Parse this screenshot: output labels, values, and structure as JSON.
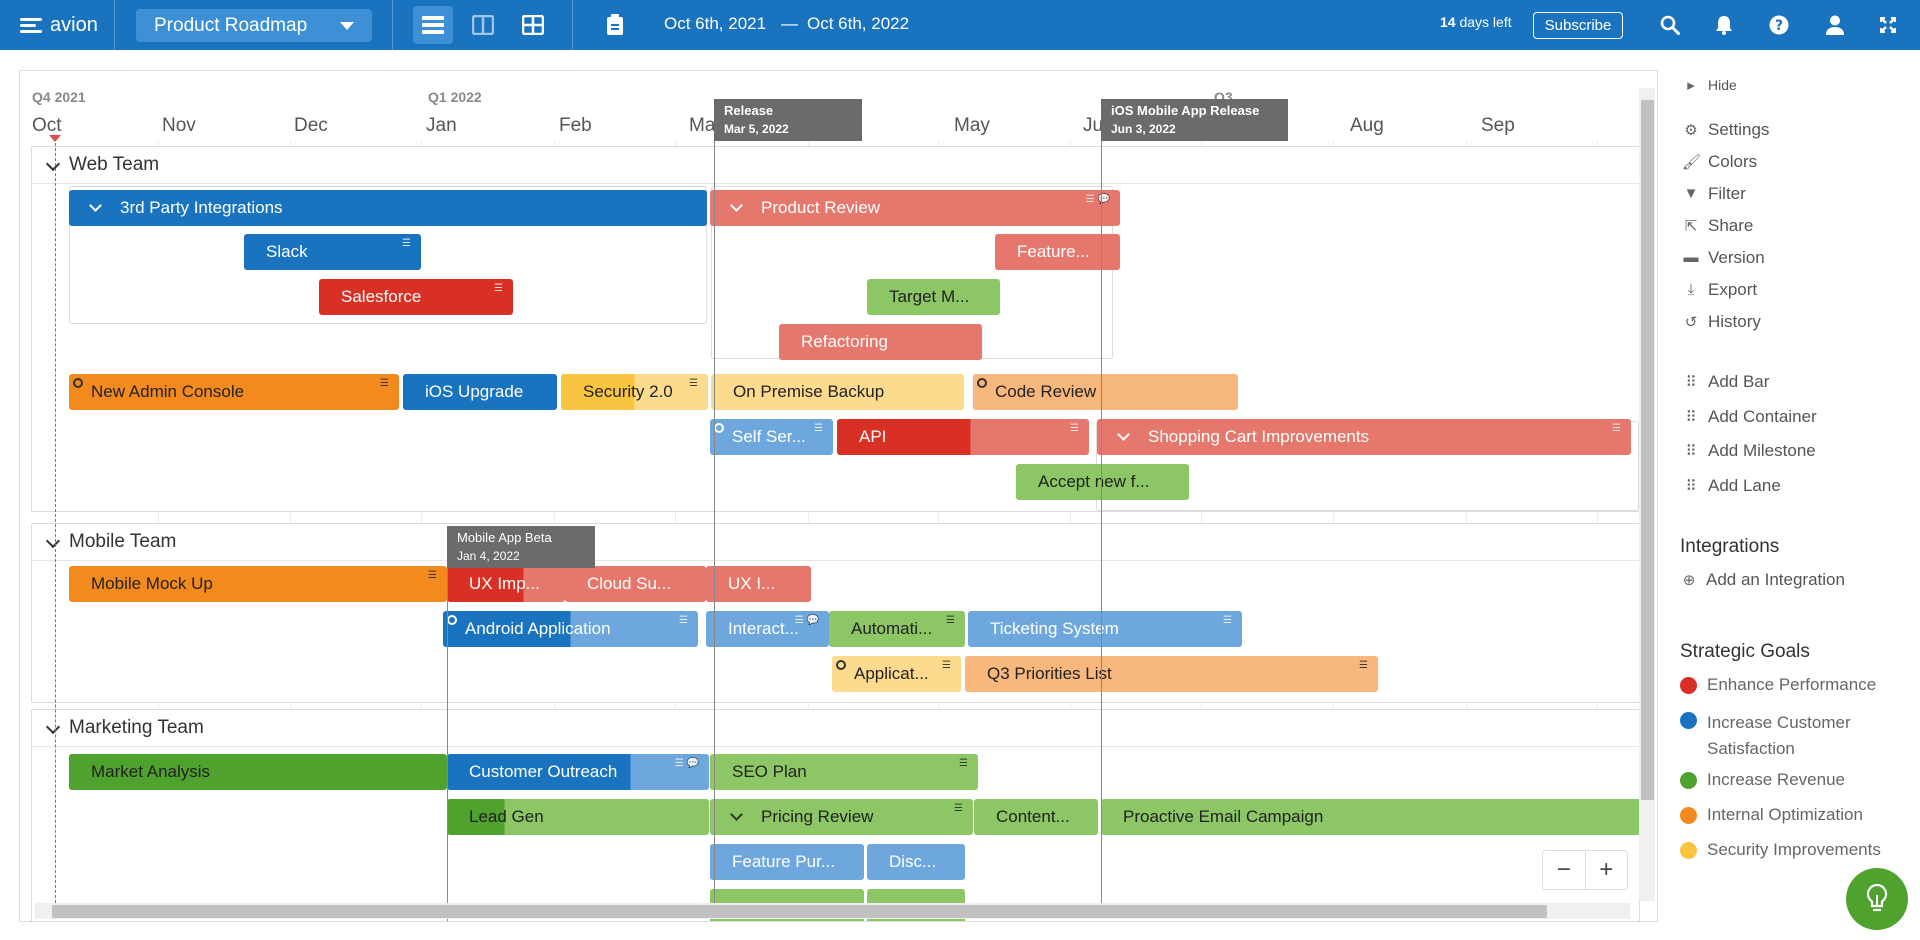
{
  "app": {
    "name": "avion"
  },
  "header": {
    "project": "Product Roadmap",
    "date_start": "Oct 6th, 2021",
    "date_sep": "—",
    "date_end": "Oct 6th, 2022",
    "days_left_num": "14",
    "days_left_text": "days left",
    "subscribe": "Subscribe"
  },
  "timeline": {
    "quarters": [
      "Q4 2021",
      "Q1 2022",
      "Q3"
    ],
    "months": [
      "Oct",
      "Nov",
      "Dec",
      "Jan",
      "Feb",
      "Ma",
      "May",
      "Ju",
      "Aug",
      "Sep"
    ]
  },
  "milestones": [
    {
      "name": "Release",
      "date": "Mar 5, 2022"
    },
    {
      "name": "iOS Mobile App Release",
      "date": "Jun 3, 2022"
    },
    {
      "name": "Mobile App Beta",
      "date": "Jan 4, 2022"
    }
  ],
  "lanes": {
    "web": {
      "title": "Web Team"
    },
    "mobile": {
      "title": "Mobile Team"
    },
    "marketing": {
      "title": "Marketing Team"
    }
  },
  "bars": {
    "third_party": "3rd Party Integrations",
    "slack": "Slack",
    "salesforce": "Salesforce",
    "product_review": "Product Review",
    "feature": "Feature...",
    "target": "Target M...",
    "refactoring": "Refactoring",
    "new_admin": "New Admin Console",
    "ios_upgrade": "iOS Upgrade",
    "security": "Security 2.0",
    "on_premise": "On Premise Backup",
    "code_review": "Code Review",
    "self_ser": "Self Ser...",
    "api": "API",
    "shopping_cart": "Shopping Cart Improvements",
    "accept": "Accept new f...",
    "mobile_mock": "Mobile Mock Up",
    "ux_imp": "UX Imp...",
    "cloud_su": "Cloud Su...",
    "ux_i": "UX I...",
    "android": "Android Application",
    "interact": "Interact...",
    "automati": "Automati...",
    "ticketing": "Ticketing System",
    "applicat": "Applicat...",
    "q3_priorities": "Q3 Priorities List",
    "market_analysis": "Market Analysis",
    "customer_outreach": "Customer Outreach",
    "seo_plan": "SEO Plan",
    "lead_gen": "Lead Gen",
    "pricing_review": "Pricing Review",
    "content": "Content...",
    "proactive_email": "Proactive Email Campaign",
    "feature_pur": "Feature Pur...",
    "disc": "Disc..."
  },
  "sidebar": {
    "hide": "Hide",
    "settings": "Settings",
    "colors": "Colors",
    "filter": "Filter",
    "share": "Share",
    "version": "Version",
    "export": "Export",
    "history": "History",
    "add_bar": "Add Bar",
    "add_container": "Add Container",
    "add_milestone": "Add Milestone",
    "add_lane": "Add Lane",
    "integrations_title": "Integrations",
    "add_integration": "Add an Integration",
    "goals_title": "Strategic Goals",
    "goals": [
      {
        "label": "Enhance Performance",
        "color": "#d93025"
      },
      {
        "label": "Increase Customer Satisfaction",
        "color": "#1a73bf"
      },
      {
        "label": "Increase Revenue",
        "color": "#4ea22d"
      },
      {
        "label": "Internal Optimization",
        "color": "#f28a1e"
      },
      {
        "label": "Security Improvements",
        "color": "#f9c440"
      }
    ]
  },
  "zoom": {
    "minus": "−",
    "plus": "+"
  }
}
